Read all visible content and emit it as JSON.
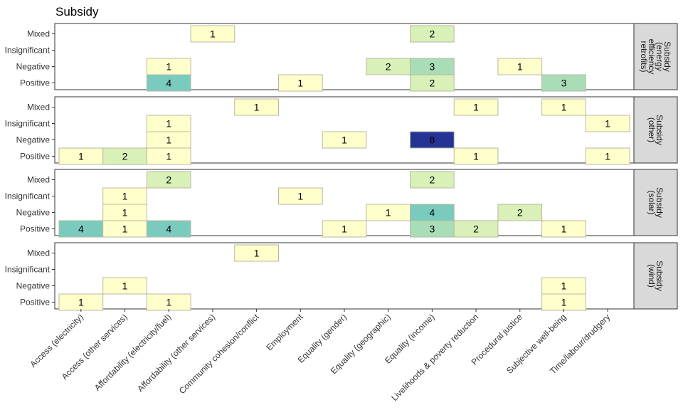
{
  "chart_data": {
    "type": "heatmap",
    "title": "Subsidy",
    "columns": [
      "Access (electricity)",
      "Access (other services)",
      "Affordability (electricity/fuel)",
      "Affordability (other services)",
      "Community cohesion/conflict",
      "Employment",
      "Equality (gender)",
      "Equality (geographic)",
      "Equality (income)",
      "Livelihoods & poverty reduction",
      "Procedural justice",
      "Subjective well-being",
      "Time/labour/drudgery"
    ],
    "rows": [
      "Mixed",
      "Insignificant",
      "Negative",
      "Positive"
    ],
    "color_scale": [
      "#ffffcc",
      "#d9f0b8",
      "#a9ddb7",
      "#7acbbe",
      "#253494"
    ],
    "color_max": 8,
    "panels": [
      {
        "strip": [
          "Subsidy",
          "(energy",
          "efficiency",
          "retrofits)"
        ],
        "cells": [
          {
            "row": "Mixed",
            "col": "Affordability (other services)",
            "value": 1
          },
          {
            "row": "Mixed",
            "col": "Equality (income)",
            "value": 2
          },
          {
            "row": "Negative",
            "col": "Affordability (electricity/fuel)",
            "value": 1
          },
          {
            "row": "Negative",
            "col": "Equality (geographic)",
            "value": 2
          },
          {
            "row": "Negative",
            "col": "Equality (income)",
            "value": 3
          },
          {
            "row": "Negative",
            "col": "Procedural justice",
            "value": 1
          },
          {
            "row": "Positive",
            "col": "Affordability (electricity/fuel)",
            "value": 4
          },
          {
            "row": "Positive",
            "col": "Employment",
            "value": 1
          },
          {
            "row": "Positive",
            "col": "Equality (income)",
            "value": 2
          },
          {
            "row": "Positive",
            "col": "Subjective well-being",
            "value": 3
          }
        ]
      },
      {
        "strip": [
          "Subsidy",
          "(other)"
        ],
        "cells": [
          {
            "row": "Mixed",
            "col": "Community cohesion/conflict",
            "value": 1
          },
          {
            "row": "Mixed",
            "col": "Livelihoods & poverty reduction",
            "value": 1
          },
          {
            "row": "Mixed",
            "col": "Subjective well-being",
            "value": 1
          },
          {
            "row": "Insignificant",
            "col": "Affordability (electricity/fuel)",
            "value": 1
          },
          {
            "row": "Insignificant",
            "col": "Time/labour/drudgery",
            "value": 1
          },
          {
            "row": "Negative",
            "col": "Affordability (electricity/fuel)",
            "value": 1
          },
          {
            "row": "Negative",
            "col": "Equality (gender)",
            "value": 1
          },
          {
            "row": "Negative",
            "col": "Equality (income)",
            "value": 8
          },
          {
            "row": "Positive",
            "col": "Access (electricity)",
            "value": 1
          },
          {
            "row": "Positive",
            "col": "Access (other services)",
            "value": 2
          },
          {
            "row": "Positive",
            "col": "Affordability (electricity/fuel)",
            "value": 1
          },
          {
            "row": "Positive",
            "col": "Livelihoods & poverty reduction",
            "value": 1
          },
          {
            "row": "Positive",
            "col": "Time/labour/drudgery",
            "value": 1
          }
        ]
      },
      {
        "strip": [
          "Subsidy",
          "(solar)"
        ],
        "cells": [
          {
            "row": "Mixed",
            "col": "Affordability (electricity/fuel)",
            "value": 2
          },
          {
            "row": "Mixed",
            "col": "Equality (income)",
            "value": 2
          },
          {
            "row": "Insignificant",
            "col": "Access (other services)",
            "value": 1
          },
          {
            "row": "Insignificant",
            "col": "Employment",
            "value": 1
          },
          {
            "row": "Negative",
            "col": "Access (other services)",
            "value": 1
          },
          {
            "row": "Negative",
            "col": "Equality (geographic)",
            "value": 1
          },
          {
            "row": "Negative",
            "col": "Equality (income)",
            "value": 4
          },
          {
            "row": "Negative",
            "col": "Procedural justice",
            "value": 2
          },
          {
            "row": "Positive",
            "col": "Access (electricity)",
            "value": 4
          },
          {
            "row": "Positive",
            "col": "Access (other services)",
            "value": 1
          },
          {
            "row": "Positive",
            "col": "Affordability (electricity/fuel)",
            "value": 4
          },
          {
            "row": "Positive",
            "col": "Equality (gender)",
            "value": 1
          },
          {
            "row": "Positive",
            "col": "Equality (income)",
            "value": 3
          },
          {
            "row": "Positive",
            "col": "Livelihoods & poverty reduction",
            "value": 2
          },
          {
            "row": "Positive",
            "col": "Subjective well-being",
            "value": 1
          }
        ]
      },
      {
        "strip": [
          "Subsidy",
          "(wind)"
        ],
        "cells": [
          {
            "row": "Mixed",
            "col": "Community cohesion/conflict",
            "value": 1
          },
          {
            "row": "Negative",
            "col": "Access (other services)",
            "value": 1
          },
          {
            "row": "Negative",
            "col": "Subjective well-being",
            "value": 1
          },
          {
            "row": "Positive",
            "col": "Access (electricity)",
            "value": 1
          },
          {
            "row": "Positive",
            "col": "Affordability (electricity/fuel)",
            "value": 1
          },
          {
            "row": "Positive",
            "col": "Subjective well-being",
            "value": 1
          }
        ]
      }
    ]
  }
}
